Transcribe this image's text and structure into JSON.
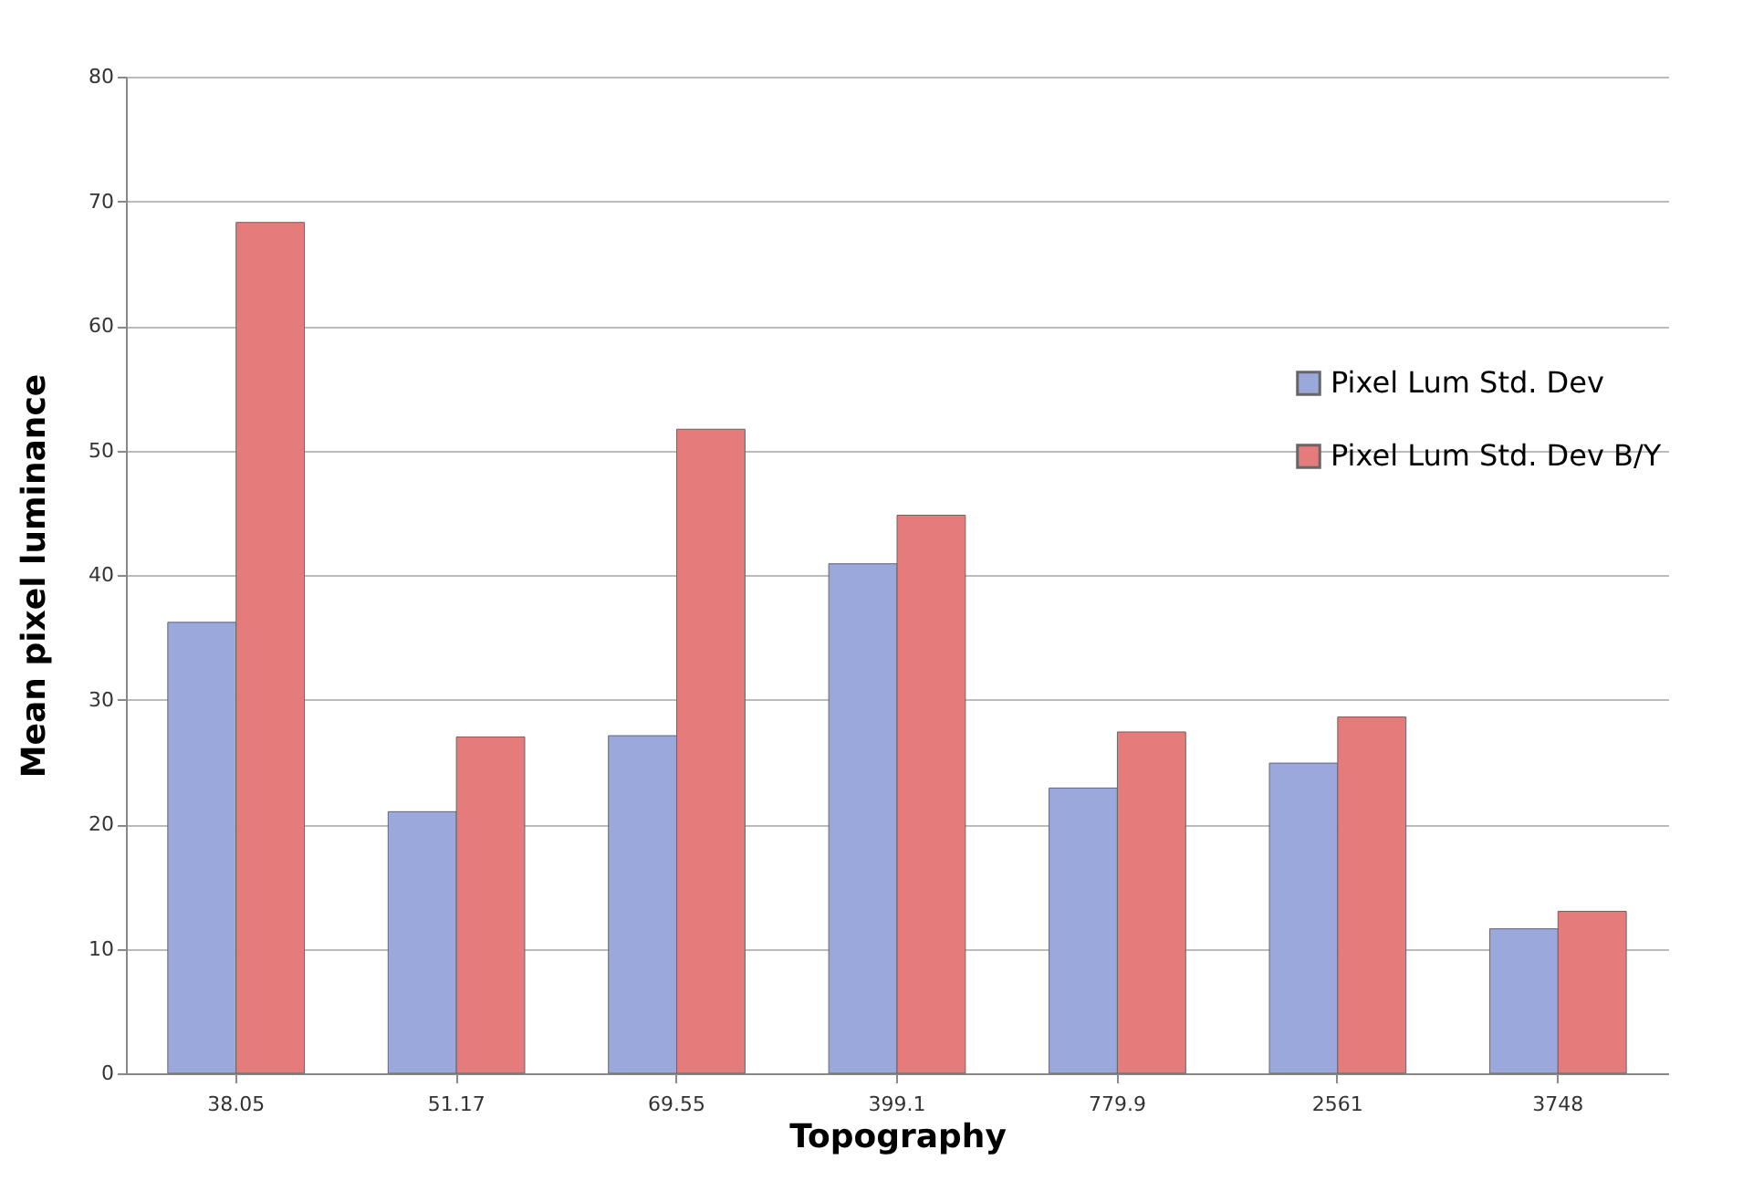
{
  "chart_data": {
    "type": "bar",
    "xlabel": "Topography",
    "ylabel": "Mean pixel luminance",
    "categories": [
      "38.05",
      "51.17",
      "69.55",
      "399.1",
      "779.9",
      "2561",
      "3748"
    ],
    "series": [
      {
        "name": "Pixel Lum Std. Dev",
        "color": "#9aa8dc",
        "values": [
          36.2,
          21.0,
          27.1,
          40.9,
          22.9,
          24.9,
          11.6
        ]
      },
      {
        "name": "Pixel Lum Std. Dev B/Y",
        "color": "#e57b7b",
        "values": [
          68.3,
          27.0,
          51.7,
          44.8,
          27.4,
          28.6,
          13.0
        ]
      }
    ],
    "ylim": [
      0,
      80
    ],
    "yticks": [
      0,
      10,
      20,
      30,
      40,
      50,
      60,
      70,
      80
    ],
    "grid": "y",
    "legend": "right"
  }
}
